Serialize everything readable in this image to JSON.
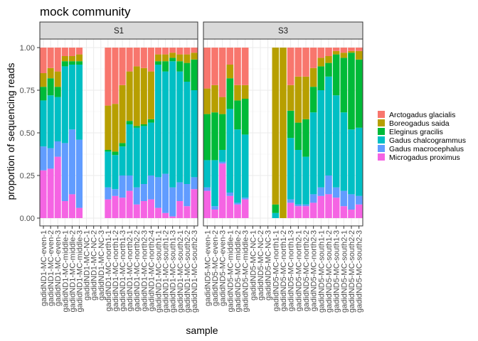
{
  "chart_data": {
    "type": "bar",
    "stacked": true,
    "title": "mock community",
    "xlabel": "sample",
    "ylabel": "proportion of sequencing reads",
    "ylim": [
      0,
      1.05
    ],
    "yticks": [
      "0.00",
      "0.25",
      "0.50",
      "0.75",
      "1.00"
    ],
    "grid": true,
    "legend_position": "right",
    "species": [
      "Arctogadus glacialis",
      "Boreogadus saida",
      "Eleginus gracilis",
      "Gadus chalcogrammus",
      "Gadus macrocephalus",
      "Microgadus proximus"
    ],
    "colors": [
      "#F8766D",
      "#B79F00",
      "#00BA38",
      "#00BFC4",
      "#619CFF",
      "#F564E3"
    ],
    "stack_order": [
      "Microgadus proximus",
      "Gadus macrocephalus",
      "Gadus chalcogrammus",
      "Eleginus gracilis",
      "Boreogadus saida",
      "Arctogadus glacialis"
    ],
    "facets": [
      {
        "label": "S1",
        "samples": [
          {
            "name": "gadidND1-MC-even-1",
            "values": [
              0.15,
              0.08,
              0.08,
              0.27,
              0.14,
              0.28
            ]
          },
          {
            "name": "gadidND1-MC-even-2",
            "values": [
              0.12,
              0.06,
              0.1,
              0.31,
              0.12,
              0.29
            ]
          },
          {
            "name": "gadidND1-MC-even-3",
            "values": [
              0.14,
              0.09,
              0.06,
              0.26,
              0.09,
              0.36
            ]
          },
          {
            "name": "gadidND1-MC-middle-1",
            "values": [
              0.05,
              0.03,
              0.03,
              0.45,
              0.34,
              0.1
            ]
          },
          {
            "name": "gadidND1-MC-middle-2",
            "values": [
              0.05,
              0.03,
              0.02,
              0.38,
              0.38,
              0.14
            ]
          },
          {
            "name": "gadidND1-MC-middle-3",
            "values": [
              0.04,
              0.04,
              0.02,
              0.44,
              0.4,
              0.06
            ]
          },
          {
            "name": "gadidND1-MC-NC-1",
            "values": [
              0,
              0,
              0,
              0,
              0,
              0
            ]
          },
          {
            "name": "gadidND1-MC-NC-2",
            "values": [
              0,
              0,
              0,
              0,
              0,
              0
            ]
          },
          {
            "name": "gadidND1-MC-NC-3",
            "values": [
              0,
              0,
              0,
              0,
              0,
              0
            ]
          },
          {
            "name": "gadidND1-MC-north1-1",
            "values": [
              0.34,
              0.26,
              0.01,
              0.21,
              0.07,
              0.11
            ]
          },
          {
            "name": "gadidND1-MC-north1-2",
            "values": [
              0.33,
              0.28,
              0.02,
              0.2,
              0.04,
              0.13
            ]
          },
          {
            "name": "gadidND1-MC-north1-3",
            "values": [
              0.22,
              0.34,
              0.02,
              0.17,
              0.13,
              0.12
            ]
          },
          {
            "name": "gadidND1-MC-north2-1",
            "values": [
              0.14,
              0.29,
              0.02,
              0.3,
              0.09,
              0.16
            ]
          },
          {
            "name": "gadidND1-MC-north2-2",
            "values": [
              0.11,
              0.35,
              0.01,
              0.35,
              0.1,
              0.08
            ]
          },
          {
            "name": "gadidND1-MC-north2-3",
            "values": [
              0.12,
              0.33,
              0.01,
              0.34,
              0.1,
              0.1
            ]
          },
          {
            "name": "gadidND1-MC-north2-4",
            "values": [
              0.14,
              0.28,
              0.02,
              0.31,
              0.14,
              0.11
            ]
          },
          {
            "name": "gadidND1-MC-south1-1",
            "values": [
              0.04,
              0.04,
              0.02,
              0.66,
              0.18,
              0.06
            ]
          },
          {
            "name": "gadidND1-MC-south1-2",
            "values": [
              0.04,
              0.04,
              0.06,
              0.6,
              0.23,
              0.03
            ]
          },
          {
            "name": "gadidND1-MC-south1-3",
            "values": [
              0.03,
              0.03,
              0.02,
              0.74,
              0.17,
              0.01
            ]
          },
          {
            "name": "gadidND1-MC-south2-1",
            "values": [
              0.04,
              0.04,
              0.06,
              0.65,
              0.11,
              0.1
            ]
          },
          {
            "name": "gadidND1-MC-south2-2",
            "values": [
              0.04,
              0.05,
              0.11,
              0.6,
              0.13,
              0.07
            ]
          },
          {
            "name": "gadidND1-MC-south2-3",
            "values": [
              0.03,
              0.04,
              0.18,
              0.51,
              0.07,
              0.17
            ]
          }
        ]
      },
      {
        "label": "S3",
        "samples": [
          {
            "name": "gadidND5-MC-even-1",
            "values": [
              0.24,
              0.15,
              0.27,
              0.16,
              0.02,
              0.16
            ]
          },
          {
            "name": "gadidND5-MC-even-2",
            "values": [
              0.22,
              0.16,
              0.28,
              0.27,
              0.02,
              0.05
            ]
          },
          {
            "name": "gadidND5-MC-even-3",
            "values": [
              0.29,
              0.1,
              0.21,
              0.07,
              0.01,
              0.32
            ]
          },
          {
            "name": "gadidND5-MC-middle-1",
            "values": [
              0.1,
              0.08,
              0.18,
              0.49,
              0.02,
              0.13
            ]
          },
          {
            "name": "gadidND5-MC-middle-2",
            "values": [
              0.22,
              0.09,
              0.17,
              0.43,
              0.01,
              0.08
            ]
          },
          {
            "name": "gadidND5-MC-middle-3",
            "values": [
              0.22,
              0.08,
              0.21,
              0.37,
              0.01,
              0.11
            ]
          },
          {
            "name": "gadidND5-MC-NC-1",
            "values": [
              0,
              0,
              0,
              0,
              0,
              0
            ]
          },
          {
            "name": "gadidND5-MC-NC-2",
            "values": [
              0,
              0,
              0,
              0,
              0,
              0
            ]
          },
          {
            "name": "gadidND5-MC-NC-3",
            "values": [
              0,
              0,
              0,
              0,
              0,
              0
            ]
          },
          {
            "name": "gadidND5-MC-north1-1",
            "values": [
              0,
              0.92,
              0.05,
              0.03,
              0,
              0
            ]
          },
          {
            "name": "gadidND5-MC-north1-2",
            "values": [
              0,
              1.0,
              0,
              0,
              0,
              0
            ]
          },
          {
            "name": "gadidND5-MC-north1-3",
            "values": [
              0.22,
              0.15,
              0.16,
              0.36,
              0.02,
              0.09
            ]
          },
          {
            "name": "gadidND5-MC-north2-1",
            "values": [
              0.17,
              0.27,
              0.16,
              0.32,
              0.01,
              0.07
            ]
          },
          {
            "name": "gadidND5-MC-north2-2",
            "values": [
              0.17,
              0.25,
              0.22,
              0.28,
              0.01,
              0.07
            ]
          },
          {
            "name": "gadidND5-MC-north2-3",
            "values": [
              0.12,
              0.11,
              0.15,
              0.48,
              0.05,
              0.09
            ]
          },
          {
            "name": "gadidND5-MC-south1-1",
            "values": [
              0.06,
              0.05,
              0.14,
              0.57,
              0.05,
              0.13
            ]
          },
          {
            "name": "gadidND5-MC-south1-2",
            "values": [
              0.05,
              0.04,
              0.08,
              0.58,
              0.11,
              0.14
            ]
          },
          {
            "name": "gadidND5-MC-south1-3",
            "values": [
              0.02,
              0.02,
              0.24,
              0.54,
              0.06,
              0.12
            ]
          },
          {
            "name": "gadidND5-MC-south2-1",
            "values": [
              0.03,
              0.03,
              0.32,
              0.46,
              0.09,
              0.07
            ]
          },
          {
            "name": "gadidND5-MC-south2-2",
            "values": [
              0.02,
              0.01,
              0.45,
              0.38,
              0.09,
              0.05
            ]
          },
          {
            "name": "gadidND5-MC-south2-3",
            "values": [
              0.02,
              0.05,
              0.4,
              0.4,
              0.05,
              0.08
            ]
          }
        ]
      }
    ]
  }
}
